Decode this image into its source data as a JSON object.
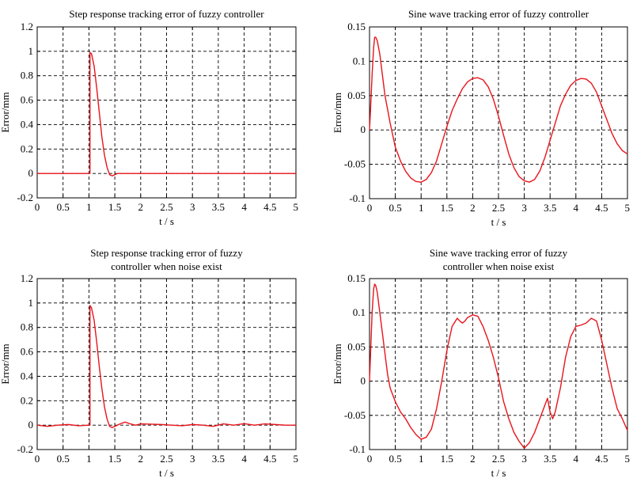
{
  "chart_data": [
    {
      "type": "line",
      "title": [
        "Step response tracking error of fuzzy controller"
      ],
      "xlabel": "t / s",
      "ylabel": "Error/mm",
      "xlim": [
        0,
        5
      ],
      "ylim": [
        -0.2,
        1.2
      ],
      "xticks": [
        "0",
        "0.5",
        "1",
        "1.5",
        "2",
        "2.5",
        "3",
        "3.5",
        "4",
        "4.5",
        "5"
      ],
      "yticks": [
        "-0.2",
        "0",
        "0.2",
        "0.4",
        "0.6",
        "0.8",
        "1",
        "1.2"
      ],
      "grid": true,
      "series": [
        {
          "name": "error",
          "color": "#e8141b",
          "x": [
            0,
            1.0,
            1.02,
            1.02,
            1.05,
            1.1,
            1.15,
            1.2,
            1.25,
            1.3,
            1.35,
            1.4,
            1.45,
            1.5,
            1.55,
            1.6,
            2,
            3,
            4,
            5
          ],
          "y": [
            0,
            0,
            0,
            0.99,
            0.98,
            0.88,
            0.7,
            0.5,
            0.3,
            0.15,
            0.05,
            -0.01,
            -0.02,
            -0.01,
            0,
            0,
            0,
            0,
            0,
            0
          ]
        }
      ]
    },
    {
      "type": "line",
      "title": [
        "Sine wave tracking error of fuzzy controller"
      ],
      "xlabel": "t / s",
      "ylabel": "Error/mm",
      "xlim": [
        0,
        5
      ],
      "ylim": [
        -0.1,
        0.15
      ],
      "xticks": [
        "0",
        "0.5",
        "1",
        "1.5",
        "2",
        "2.5",
        "3",
        "3.5",
        "4",
        "4.5",
        "5"
      ],
      "yticks": [
        "-0.1",
        "-0.05",
        "0",
        "0.05",
        "0.1",
        "0.15"
      ],
      "grid": true,
      "series": [
        {
          "name": "error",
          "color": "#e8141b",
          "x": [
            0,
            0.02,
            0.05,
            0.08,
            0.1,
            0.12,
            0.15,
            0.2,
            0.25,
            0.3,
            0.4,
            0.5,
            0.6,
            0.7,
            0.8,
            0.9,
            1.0,
            1.1,
            1.2,
            1.3,
            1.4,
            1.5,
            1.6,
            1.7,
            1.8,
            1.9,
            2.0,
            2.1,
            2.2,
            2.3,
            2.4,
            2.5,
            2.6,
            2.7,
            2.8,
            2.9,
            3.0,
            3.1,
            3.2,
            3.3,
            3.4,
            3.5,
            3.6,
            3.7,
            3.8,
            3.9,
            4.0,
            4.1,
            4.2,
            4.3,
            4.4,
            4.5,
            4.6,
            4.7,
            4.8,
            4.9,
            5.0
          ],
          "y": [
            0,
            0.03,
            0.08,
            0.12,
            0.135,
            0.135,
            0.13,
            0.11,
            0.08,
            0.05,
            0.01,
            -0.025,
            -0.045,
            -0.06,
            -0.07,
            -0.075,
            -0.076,
            -0.072,
            -0.062,
            -0.045,
            -0.02,
            0.005,
            0.028,
            0.045,
            0.06,
            0.07,
            0.075,
            0.076,
            0.073,
            0.063,
            0.045,
            0.02,
            -0.008,
            -0.035,
            -0.055,
            -0.068,
            -0.074,
            -0.076,
            -0.072,
            -0.06,
            -0.04,
            -0.015,
            0.01,
            0.035,
            0.052,
            0.065,
            0.072,
            0.075,
            0.074,
            0.068,
            0.055,
            0.035,
            0.015,
            -0.005,
            -0.02,
            -0.03,
            -0.035
          ]
        }
      ]
    },
    {
      "type": "line",
      "title": [
        "Step response tracking error of fuzzy",
        "controller when noise exist"
      ],
      "xlabel": "t / s",
      "ylabel": "Error/mm",
      "xlim": [
        0,
        5
      ],
      "ylim": [
        -0.2,
        1.2
      ],
      "xticks": [
        "0",
        "0.5",
        "1",
        "1.5",
        "2",
        "2.5",
        "3",
        "3.5",
        "4",
        "4.5",
        "5"
      ],
      "yticks": [
        "-0.2",
        "0",
        "0.2",
        "0.4",
        "0.6",
        "0.8",
        "1",
        "1.2"
      ],
      "grid": true,
      "series": [
        {
          "name": "error",
          "color": "#e8141b",
          "x": [
            0,
            0.2,
            0.4,
            0.6,
            0.8,
            1.0,
            1.02,
            1.02,
            1.05,
            1.1,
            1.15,
            1.2,
            1.25,
            1.3,
            1.35,
            1.4,
            1.45,
            1.5,
            1.6,
            1.7,
            1.8,
            1.9,
            2.0,
            2.2,
            2.4,
            2.6,
            2.8,
            3.0,
            3.2,
            3.4,
            3.6,
            3.8,
            4.0,
            4.2,
            4.4,
            4.6,
            4.8,
            5.0
          ],
          "y": [
            0,
            -0.01,
            0,
            0.005,
            -0.005,
            0,
            0,
            0.98,
            0.96,
            0.86,
            0.68,
            0.48,
            0.3,
            0.15,
            0.05,
            -0.01,
            -0.02,
            -0.01,
            0.01,
            0.025,
            0.01,
            0.0,
            0.01,
            0.008,
            0.005,
            0.0,
            -0.005,
            0.005,
            0.0,
            -0.01,
            0.01,
            0.0,
            0.012,
            0.0,
            0.01,
            0.005,
            0.0,
            0.0
          ]
        }
      ]
    },
    {
      "type": "line",
      "title": [
        "Sine wave tracking error of fuzzy",
        "controller when noise exist"
      ],
      "xlabel": "t / s",
      "ylabel": "Error/mm",
      "xlim": [
        0,
        5
      ],
      "ylim": [
        -0.1,
        0.15
      ],
      "xticks": [
        "0",
        "0.5",
        "1",
        "1.5",
        "2",
        "2.5",
        "3",
        "3.5",
        "4",
        "4.5",
        "5"
      ],
      "yticks": [
        "-0.1",
        "-0.05",
        "0",
        "0.05",
        "0.1",
        "0.15"
      ],
      "grid": true,
      "series": [
        {
          "name": "error",
          "color": "#e8141b",
          "x": [
            0,
            0.02,
            0.05,
            0.08,
            0.1,
            0.12,
            0.15,
            0.2,
            0.25,
            0.3,
            0.35,
            0.4,
            0.5,
            0.6,
            0.7,
            0.8,
            0.9,
            1.0,
            1.1,
            1.2,
            1.3,
            1.4,
            1.5,
            1.6,
            1.7,
            1.75,
            1.8,
            1.85,
            1.9,
            2.0,
            2.1,
            2.2,
            2.3,
            2.4,
            2.5,
            2.6,
            2.7,
            2.8,
            2.9,
            3.0,
            3.1,
            3.2,
            3.3,
            3.4,
            3.45,
            3.5,
            3.55,
            3.6,
            3.7,
            3.8,
            3.9,
            4.0,
            4.1,
            4.2,
            4.3,
            4.4,
            4.5,
            4.6,
            4.7,
            4.8,
            4.9,
            5.0
          ],
          "y": [
            0,
            0.04,
            0.1,
            0.135,
            0.142,
            0.14,
            0.13,
            0.1,
            0.07,
            0.04,
            0.01,
            -0.01,
            -0.03,
            -0.045,
            -0.055,
            -0.068,
            -0.078,
            -0.085,
            -0.082,
            -0.07,
            -0.04,
            0.0,
            0.045,
            0.08,
            0.092,
            0.088,
            0.085,
            0.088,
            0.093,
            0.097,
            0.095,
            0.08,
            0.06,
            0.035,
            0.005,
            -0.03,
            -0.055,
            -0.075,
            -0.088,
            -0.098,
            -0.09,
            -0.075,
            -0.055,
            -0.035,
            -0.025,
            -0.045,
            -0.055,
            -0.045,
            -0.01,
            0.035,
            0.065,
            0.08,
            0.082,
            0.085,
            0.092,
            0.088,
            0.06,
            0.025,
            -0.01,
            -0.04,
            -0.055,
            -0.072
          ]
        }
      ]
    }
  ]
}
